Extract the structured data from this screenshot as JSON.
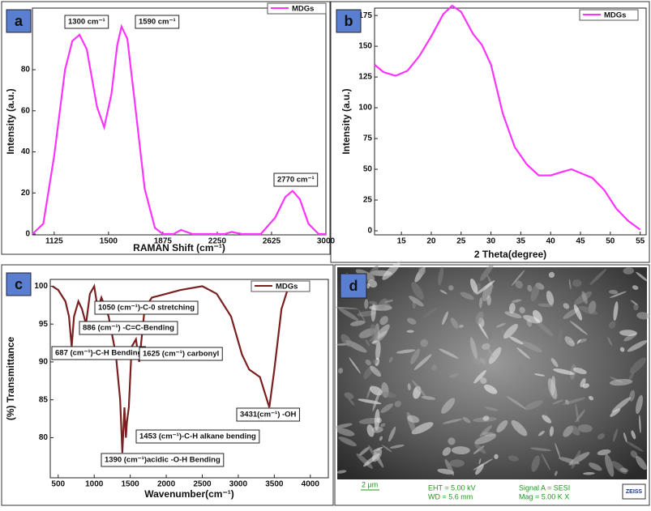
{
  "chart_data": [
    {
      "type": "line",
      "panel_label": "a",
      "x_label": "RAMAN Shift (cm⁻¹)",
      "y_label": "Intensity (a.u.)",
      "x": [
        975,
        1050,
        1125,
        1200,
        1250,
        1300,
        1350,
        1420,
        1470,
        1520,
        1560,
        1590,
        1630,
        1680,
        1750,
        1820,
        1875,
        1950,
        2000,
        2080,
        2200,
        2300,
        2350,
        2420,
        2550,
        2650,
        2720,
        2770,
        2820,
        2880,
        2950,
        3000
      ],
      "series": [
        {
          "name": "MDGs",
          "color": "#ff33ff",
          "values": [
            0,
            5,
            38,
            80,
            94,
            97,
            90,
            62,
            52,
            68,
            92,
            101,
            95,
            65,
            22,
            3,
            0,
            0,
            2,
            0,
            0,
            0,
            1,
            0,
            0,
            8,
            18,
            21,
            17,
            5,
            0,
            0
          ]
        }
      ],
      "xlim": [
        975,
        3000
      ],
      "ylim": [
        -0.4,
        110
      ],
      "xticks": [
        1125,
        1500,
        1875,
        2250,
        2625,
        3000
      ],
      "yticks": [
        0,
        20,
        40,
        60,
        80
      ],
      "annotations": [
        "1300 cm⁻¹",
        "1590 cm⁻¹",
        "2770 cm⁻¹"
      ]
    },
    {
      "type": "line",
      "panel_label": "b",
      "x_label": "2 Theta(degree)",
      "y_label": "Intensity (a.u.)",
      "x": [
        10.5,
        12,
        14,
        16,
        18,
        20,
        22,
        23.5,
        25,
        27,
        28.5,
        30,
        32,
        34,
        36,
        38,
        40,
        42,
        43.5,
        45,
        47,
        49,
        51,
        53,
        55
      ],
      "series": [
        {
          "name": "MDGs",
          "color": "#ff33ff",
          "values": [
            135,
            129,
            126,
            130,
            142,
            158,
            176,
            183,
            178,
            160,
            151,
            135,
            95,
            68,
            54,
            45,
            45,
            48,
            50,
            47,
            43,
            33,
            18,
            8,
            1
          ]
        }
      ],
      "xlim": [
        10.5,
        56
      ],
      "ylim": [
        -3.3,
        181
      ],
      "xticks": [
        15,
        20,
        25,
        30,
        35,
        40,
        45,
        50,
        55
      ],
      "yticks": [
        0,
        25,
        50,
        75,
        100,
        125,
        150,
        175
      ]
    },
    {
      "type": "line",
      "panel_label": "c",
      "x_label": "Wavenumber(cm⁻¹)",
      "y_label": "(%) Transmittance",
      "x": [
        420,
        500,
        600,
        650,
        687,
        720,
        780,
        830,
        886,
        940,
        1000,
        1050,
        1100,
        1200,
        1300,
        1360,
        1390,
        1420,
        1440,
        1453,
        1480,
        1520,
        1580,
        1625,
        1700,
        1800,
        2000,
        2200,
        2500,
        2700,
        2900,
        3050,
        3150,
        3300,
        3431,
        3500,
        3600,
        3700
      ],
      "series": [
        {
          "name": "MDGs",
          "color": "#7a2020",
          "values": [
            100,
            99.5,
            98,
            96,
            92,
            96,
            98,
            97,
            95,
            99,
            100,
            97,
            98.5,
            96,
            91,
            85,
            78,
            84,
            80,
            82,
            84,
            92,
            93,
            90,
            97,
            98.5,
            99,
            99.5,
            100,
            99,
            96,
            91,
            89,
            88,
            84,
            89,
            97,
            100
          ]
        }
      ],
      "xlim": [
        390,
        4250
      ],
      "ylim": [
        74.7,
        100.9
      ],
      "xticks": [
        500,
        1000,
        1500,
        2000,
        2500,
        3000,
        3500,
        4000
      ],
      "yticks": [
        80,
        85,
        90,
        95,
        100
      ],
      "annotations": [
        "1050 (cm⁻¹)-C-0 stretching",
        "886 (cm⁻¹) -C=C-Bending",
        "687 (cm⁻¹)-C-H Bending",
        "1625 (cm⁻¹) carbonyl",
        "3431(cm⁻¹) -OH",
        "1453 (cm⁻¹)-C-H alkane bending",
        "1390 (cm⁻¹)acidic -O-H Bending"
      ]
    }
  ],
  "sem_panel": {
    "panel_label": "d",
    "scale_bar": "2 μm",
    "eht": "EHT =  5.00 kV",
    "wd": "WD =  5.6 mm",
    "signal": "Signal A = SESI",
    "mag": "Mag =   5.00 K X",
    "brand": "ZEISS"
  }
}
